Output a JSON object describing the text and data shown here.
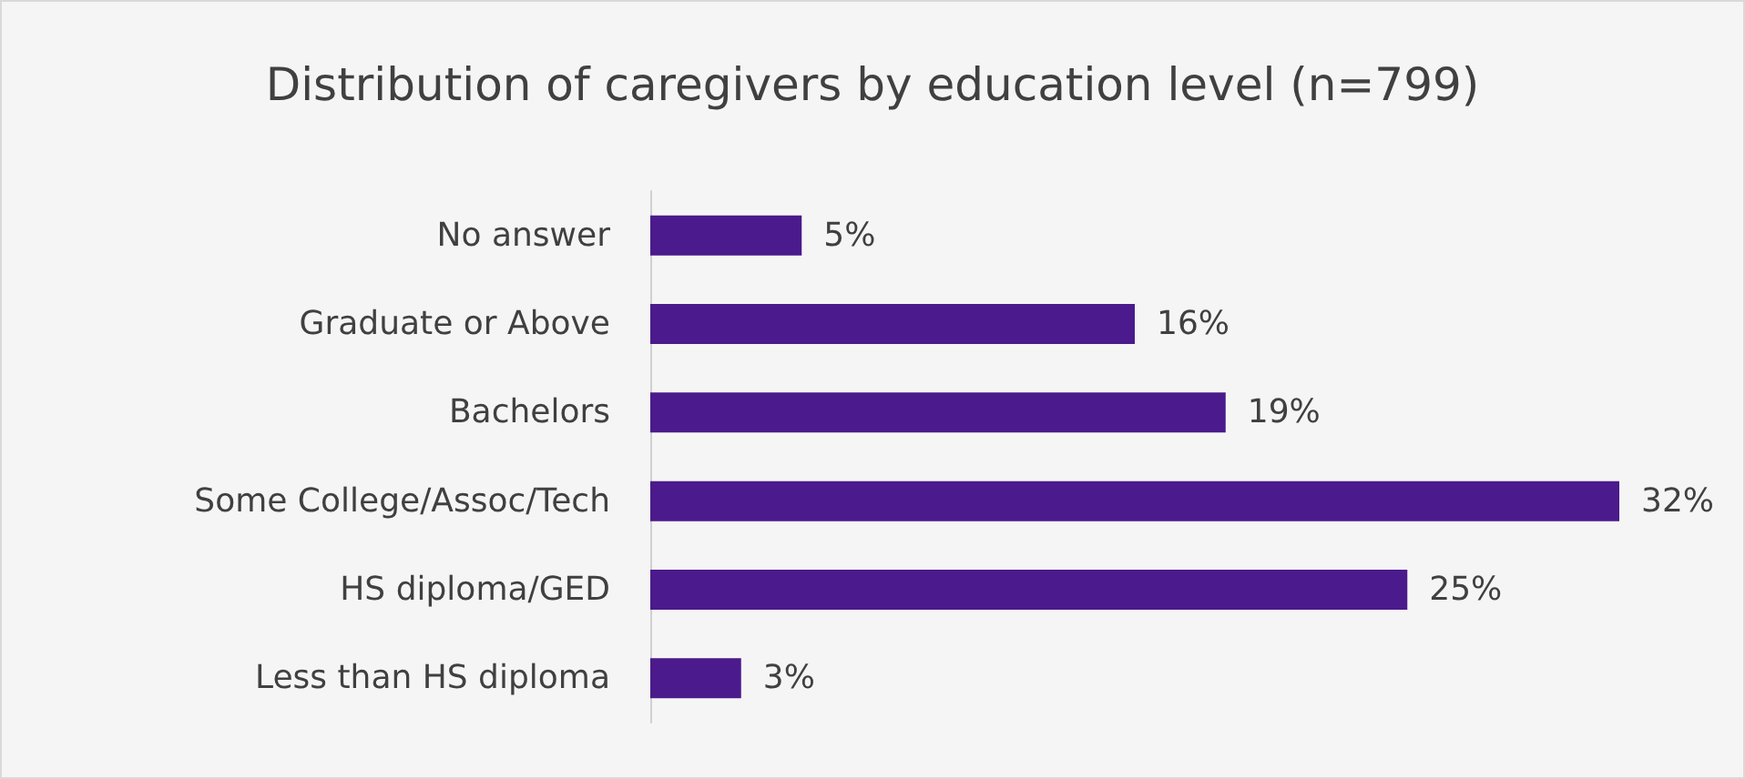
{
  "chart_data": {
    "type": "bar",
    "orientation": "horizontal",
    "title": "Distribution of caregivers by education level (n=799)",
    "categories": [
      "No answer",
      "Graduate or Above",
      "Bachelors",
      "Some College/Assoc/Tech",
      "HS diploma/GED",
      "Less than HS diploma"
    ],
    "values": [
      5,
      16,
      19,
      32,
      25,
      3
    ],
    "value_labels": [
      "5%",
      "16%",
      "19%",
      "32%",
      "25%",
      "3%"
    ],
    "color": "#4b1a8c"
  }
}
